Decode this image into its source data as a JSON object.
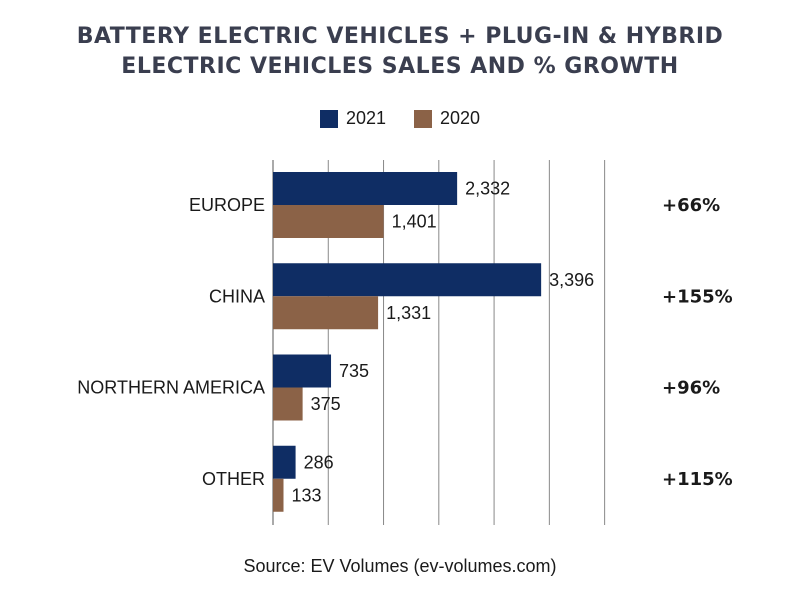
{
  "chart_data": {
    "type": "bar",
    "orientation": "horizontal",
    "title_lines": [
      "BATTERY ELECTRIC VEHICLES + PLUG-IN & HYBRID",
      "ELECTRIC VEHICLES SALES AND % GROWTH"
    ],
    "categories": [
      "EUROPE",
      "CHINA",
      "NORTHERN AMERICA",
      "OTHER"
    ],
    "series": [
      {
        "name": "2021",
        "color": "#0f2d64",
        "values": [
          2332,
          3396,
          735,
          286
        ],
        "labels": [
          "2,332",
          "3,396",
          "735",
          "286"
        ]
      },
      {
        "name": "2020",
        "color": "#8b6247",
        "values": [
          1401,
          1331,
          375,
          133
        ],
        "labels": [
          "1,401",
          "1,331",
          "375",
          "133"
        ]
      }
    ],
    "growth_labels": [
      "+66%",
      "+155%",
      "+96%",
      "+115%"
    ],
    "xlim": [
      0,
      4800
    ],
    "grid": true,
    "legend_position": "top-center"
  },
  "source": "Source: EV Volumes (ev-volumes.com)"
}
